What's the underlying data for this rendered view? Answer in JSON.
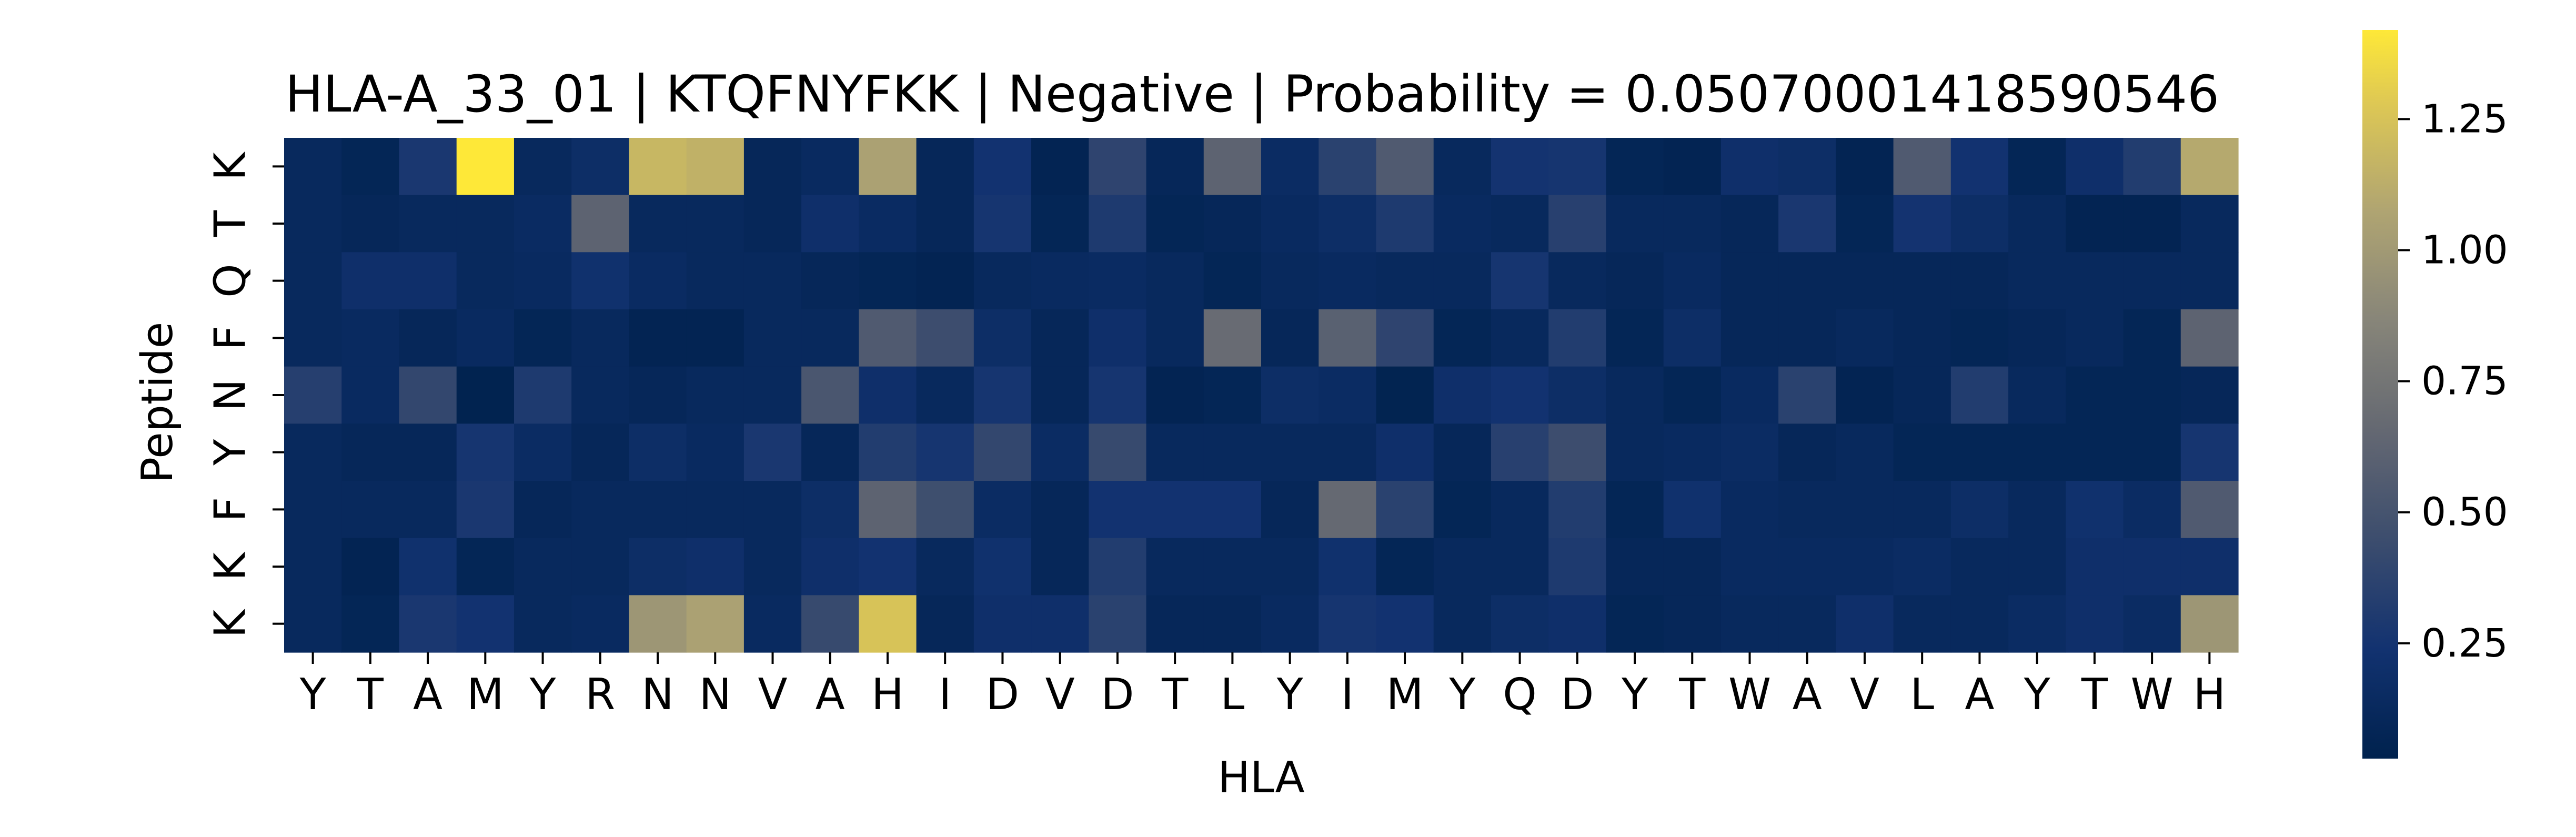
{
  "chart_data": {
    "type": "heatmap",
    "title": "HLA-A_33_01 | KTQFNYFKK | Negative | Probability = 0.05070001418590546",
    "xlabel": "HLA",
    "ylabel": "Peptide",
    "x_categories": [
      "Y",
      "T",
      "A",
      "M",
      "Y",
      "R",
      "N",
      "N",
      "V",
      "A",
      "H",
      "I",
      "D",
      "V",
      "D",
      "T",
      "L",
      "Y",
      "I",
      "M",
      "Y",
      "Q",
      "D",
      "Y",
      "T",
      "W",
      "A",
      "V",
      "L",
      "A",
      "Y",
      "T",
      "W",
      "H"
    ],
    "y_categories": [
      "K",
      "T",
      "Q",
      "F",
      "N",
      "Y",
      "F",
      "K",
      "K"
    ],
    "colorbar": {
      "colormap": "cividis",
      "vmin": 0.03,
      "vmax": 1.42,
      "ticks": [
        0.25,
        0.5,
        0.75,
        1.0,
        1.25
      ],
      "tick_labels": [
        "0.25",
        "0.50",
        "0.75",
        "1.00",
        "1.25"
      ]
    },
    "values": [
      [
        0.12,
        0.08,
        0.28,
        1.42,
        0.12,
        0.18,
        1.18,
        1.15,
        0.1,
        0.14,
        1.05,
        0.1,
        0.24,
        0.06,
        0.38,
        0.1,
        0.62,
        0.16,
        0.36,
        0.55,
        0.12,
        0.25,
        0.26,
        0.08,
        0.06,
        0.2,
        0.18,
        0.06,
        0.55,
        0.24,
        0.08,
        0.2,
        0.32,
        1.1
      ],
      [
        0.12,
        0.1,
        0.12,
        0.12,
        0.15,
        0.62,
        0.12,
        0.12,
        0.1,
        0.2,
        0.15,
        0.1,
        0.26,
        0.08,
        0.3,
        0.08,
        0.1,
        0.14,
        0.18,
        0.3,
        0.14,
        0.12,
        0.35,
        0.12,
        0.12,
        0.1,
        0.28,
        0.08,
        0.25,
        0.18,
        0.12,
        0.06,
        0.06,
        0.12
      ],
      [
        0.12,
        0.2,
        0.2,
        0.12,
        0.14,
        0.22,
        0.15,
        0.12,
        0.12,
        0.1,
        0.08,
        0.06,
        0.12,
        0.14,
        0.15,
        0.12,
        0.08,
        0.12,
        0.14,
        0.12,
        0.12,
        0.26,
        0.12,
        0.1,
        0.14,
        0.1,
        0.1,
        0.1,
        0.1,
        0.1,
        0.12,
        0.12,
        0.12,
        0.12
      ],
      [
        0.12,
        0.14,
        0.1,
        0.14,
        0.08,
        0.12,
        0.06,
        0.06,
        0.12,
        0.12,
        0.55,
        0.45,
        0.18,
        0.1,
        0.2,
        0.12,
        0.68,
        0.1,
        0.6,
        0.38,
        0.08,
        0.12,
        0.32,
        0.08,
        0.18,
        0.1,
        0.1,
        0.12,
        0.1,
        0.08,
        0.1,
        0.12,
        0.08,
        0.62
      ],
      [
        0.34,
        0.14,
        0.4,
        0.04,
        0.3,
        0.12,
        0.1,
        0.12,
        0.12,
        0.52,
        0.2,
        0.12,
        0.26,
        0.1,
        0.26,
        0.06,
        0.08,
        0.18,
        0.16,
        0.05,
        0.2,
        0.24,
        0.18,
        0.12,
        0.08,
        0.14,
        0.36,
        0.06,
        0.1,
        0.32,
        0.12,
        0.08,
        0.08,
        0.1
      ],
      [
        0.12,
        0.1,
        0.1,
        0.26,
        0.16,
        0.1,
        0.18,
        0.14,
        0.28,
        0.1,
        0.32,
        0.26,
        0.4,
        0.16,
        0.42,
        0.12,
        0.12,
        0.12,
        0.12,
        0.2,
        0.1,
        0.35,
        0.45,
        0.12,
        0.14,
        0.16,
        0.1,
        0.12,
        0.08,
        0.08,
        0.08,
        0.08,
        0.08,
        0.26
      ],
      [
        0.12,
        0.12,
        0.12,
        0.28,
        0.1,
        0.12,
        0.12,
        0.12,
        0.12,
        0.18,
        0.62,
        0.46,
        0.16,
        0.1,
        0.24,
        0.24,
        0.24,
        0.1,
        0.66,
        0.36,
        0.08,
        0.12,
        0.32,
        0.08,
        0.22,
        0.14,
        0.12,
        0.12,
        0.12,
        0.18,
        0.12,
        0.22,
        0.16,
        0.55
      ],
      [
        0.12,
        0.06,
        0.22,
        0.08,
        0.12,
        0.12,
        0.18,
        0.2,
        0.12,
        0.2,
        0.24,
        0.12,
        0.22,
        0.1,
        0.32,
        0.12,
        0.12,
        0.12,
        0.22,
        0.08,
        0.12,
        0.12,
        0.3,
        0.1,
        0.1,
        0.14,
        0.14,
        0.14,
        0.16,
        0.12,
        0.12,
        0.2,
        0.2,
        0.2
      ],
      [
        0.12,
        0.08,
        0.28,
        0.24,
        0.12,
        0.14,
        0.98,
        1.05,
        0.14,
        0.42,
        1.25,
        0.1,
        0.2,
        0.2,
        0.36,
        0.1,
        0.1,
        0.14,
        0.26,
        0.24,
        0.12,
        0.18,
        0.2,
        0.08,
        0.1,
        0.12,
        0.12,
        0.2,
        0.12,
        0.12,
        0.16,
        0.2,
        0.16,
        0.98
      ]
    ]
  }
}
